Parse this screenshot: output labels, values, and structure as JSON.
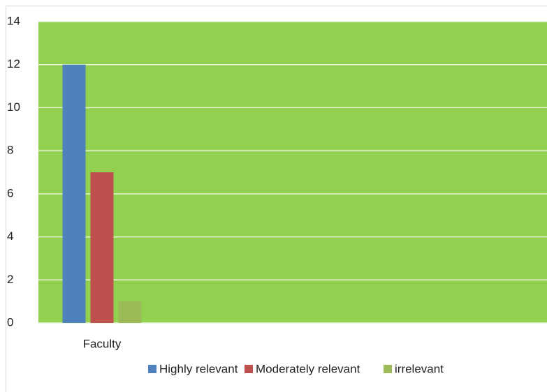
{
  "chart_data": {
    "type": "bar",
    "categories": [
      "Faculty",
      null,
      null,
      null
    ],
    "series": [
      {
        "name": "Highly relevant",
        "color": "#4f81bd",
        "values": [
          12,
          null,
          null,
          null
        ]
      },
      {
        "name": "Moderately relevant",
        "color": "#c0504d",
        "values": [
          7,
          null,
          null,
          null
        ]
      },
      {
        "name": "irrelevant",
        "color": "#9bbb59",
        "values": [
          1,
          null,
          null,
          null
        ]
      }
    ],
    "ylim": [
      0,
      14
    ],
    "yticks": [
      0,
      2,
      4,
      6,
      8,
      10,
      12,
      14
    ],
    "grid": true,
    "plot_background": "#92d050",
    "legend": "bottom"
  }
}
